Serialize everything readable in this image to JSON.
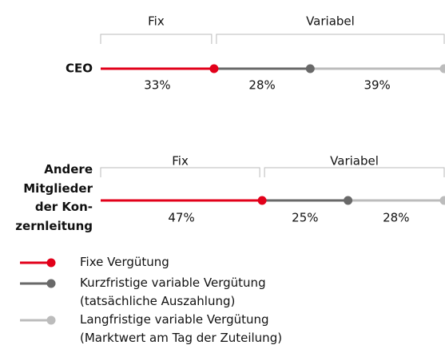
{
  "chart_data": {
    "type": "segment",
    "categories": [
      "CEO",
      "Andere Mitglieder der Kon­zernleitung"
    ],
    "group_labels": [
      "Fix",
      "Variabel"
    ],
    "xlim": [
      0,
      100
    ],
    "series": [
      {
        "name": "Fixe Vergütung",
        "color": "#e2001a",
        "values": [
          33,
          47
        ],
        "value_labels": [
          "33%",
          "47%"
        ]
      },
      {
        "name": "Kurzfristige variable Vergütung (tatsächliche Auszahlung)",
        "color": "#696969",
        "values": [
          28,
          25
        ],
        "value_labels": [
          "28%",
          "25%"
        ]
      },
      {
        "name": "Langfristige variable Vergütung (Marktwert am Tag der Zuteilung)",
        "color": "#bcbcbc",
        "values": [
          39,
          28
        ],
        "value_labels": [
          "39%",
          "28%"
        ]
      }
    ]
  }
}
